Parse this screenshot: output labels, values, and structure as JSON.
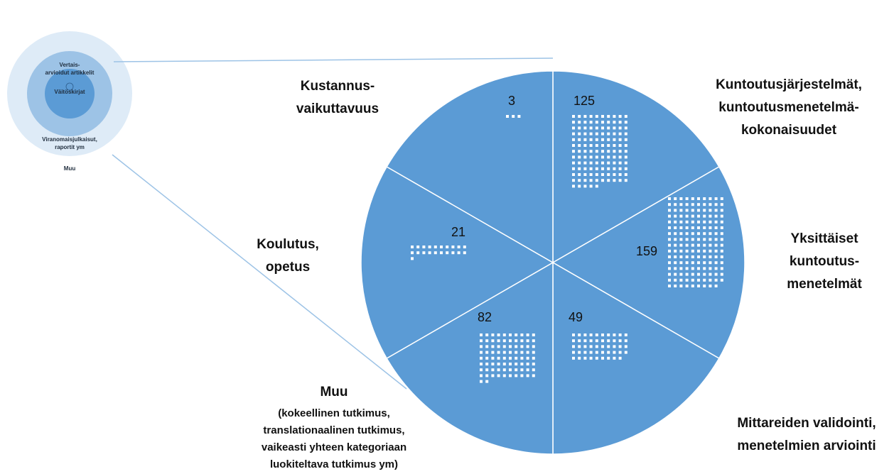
{
  "inset": {
    "rings": [
      {
        "lines": [
          "Vertais-",
          "arvioidut artikkelit"
        ]
      },
      {
        "lines": [
          "Väitöskirjat"
        ]
      },
      {
        "lines": [
          "Viranomaisjulkaisut,",
          "raportit ym"
        ]
      },
      {
        "lines": [
          "Muu"
        ]
      }
    ]
  },
  "sectors": [
    {
      "lines": [
        "Kuntoutusjärjestelmät,",
        "kuntoutusmenetelmä-",
        "kokonaisuudet"
      ],
      "count": 125
    },
    {
      "lines": [
        "Yksittäiset",
        "kuntoutus-",
        "menetelmät"
      ],
      "count": 159
    },
    {
      "lines": [
        "Mittareiden validointi,",
        "menetelmien arviointi"
      ],
      "count": 49
    },
    {
      "lines": [
        "Muu"
      ],
      "detail": [
        "(kokeellinen tutkimus,",
        "translationaalinen tutkimus,",
        "vaikeasti yhteen kategoriaan",
        "luokiteltava tutkimus ym)"
      ],
      "count": 82
    },
    {
      "lines": [
        "Koulutus,",
        "opetus"
      ],
      "count": 21
    },
    {
      "lines": [
        "Kustannus-",
        "vaikuttavuus"
      ],
      "count": 3
    }
  ]
}
